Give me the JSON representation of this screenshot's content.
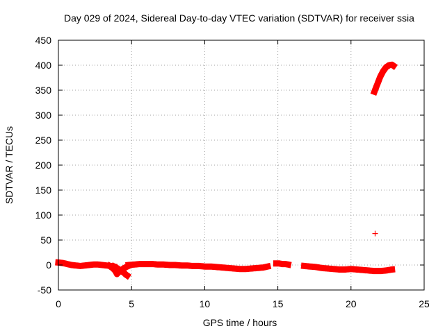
{
  "chart_data": {
    "type": "scatter",
    "title": "Day 029 of 2024, Sidereal Day-to-day VTEC variation (SDTVAR) for receiver ssia",
    "xlabel": "GPS time / hours",
    "ylabel": "SDTVAR / TECUs",
    "xlim": [
      0,
      25
    ],
    "ylim": [
      -50,
      450
    ],
    "xticks": [
      "0",
      "5",
      "10",
      "15",
      "20",
      "25"
    ],
    "yticks": [
      "-50",
      "0",
      "50",
      "100",
      "150",
      "200",
      "250",
      "300",
      "350",
      "400",
      "450"
    ],
    "grid": true,
    "series": [
      {
        "name": "SDTVAR",
        "color": "#ff0000",
        "marker": "plus",
        "segments": [
          {
            "x": [
              0.0,
              0.3,
              0.6,
              0.9,
              1.2,
              1.5,
              1.8,
              2.1,
              2.4,
              2.7,
              3.0,
              3.3,
              3.6,
              3.8
            ],
            "y": [
              5,
              4,
              2,
              0,
              -1,
              -2,
              -1,
              0,
              1,
              1,
              0,
              -1,
              -2,
              -3
            ]
          },
          {
            "x": [
              3.5,
              3.7,
              3.9,
              4.0,
              4.1,
              4.3,
              4.5,
              4.7
            ],
            "y": [
              -2,
              -6,
              -12,
              -18,
              -15,
              -10,
              -6,
              -3
            ]
          },
          {
            "x": [
              3.8,
              4.0,
              4.2,
              4.3,
              4.5,
              4.6,
              4.7
            ],
            "y": [
              -3,
              -6,
              -10,
              -12,
              -16,
              -19,
              -21
            ]
          },
          {
            "x": [
              4.8,
              5.2,
              5.6,
              6.0,
              6.4,
              6.8,
              7.2,
              7.6,
              8.0,
              8.4,
              8.8,
              9.2,
              9.6,
              10.0,
              10.4,
              10.8,
              11.2,
              11.6,
              12.0,
              12.4,
              12.8,
              13.2,
              13.6,
              14.0,
              14.3
            ],
            "y": [
              0,
              1,
              2,
              2,
              2,
              1,
              1,
              0,
              0,
              -1,
              -1,
              -2,
              -2,
              -3,
              -3,
              -4,
              -5,
              -6,
              -7,
              -8,
              -8,
              -7,
              -6,
              -5,
              -3
            ]
          },
          {
            "x": [
              14.9,
              15.1,
              15.3,
              15.5,
              15.7
            ],
            "y": [
              3,
              3,
              2,
              2,
              1
            ]
          },
          {
            "x": [
              16.8,
              17.2,
              17.6,
              18.0,
              18.4,
              18.8,
              19.2,
              19.6,
              20.0,
              20.4,
              20.8,
              21.2,
              21.6,
              22.0,
              22.4,
              22.8
            ],
            "y": [
              -2,
              -3,
              -4,
              -6,
              -7,
              -8,
              -9,
              -9,
              -8,
              -9,
              -10,
              -11,
              -12,
              -12,
              -11,
              -9
            ]
          },
          {
            "x": [
              21.6,
              21.8,
              22.0,
              22.2,
              22.4,
              22.6,
              22.8,
              22.9
            ],
            "y": [
              347,
              362,
              377,
              388,
              396,
              400,
              401,
              399
            ]
          },
          {
            "x": [
              21.65
            ],
            "y": [
              63
            ]
          }
        ]
      }
    ]
  }
}
